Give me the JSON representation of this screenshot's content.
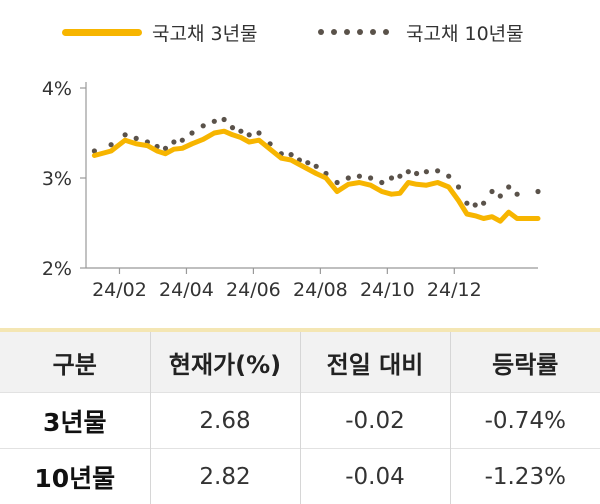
{
  "legend": {
    "series1": "국고채 3년물",
    "series2": "국고채 10년물"
  },
  "colors": {
    "series1": "#F7B500",
    "series2": "#5a524a",
    "axis": "#999999"
  },
  "chart_data": {
    "type": "line",
    "x_tick_labels": [
      "24/02",
      "24/04",
      "24/06",
      "24/08",
      "24/10",
      "24/12"
    ],
    "y_tick_labels": [
      "4%",
      "3%",
      "2%"
    ],
    "ylim": [
      2.0,
      4.0
    ],
    "xlabel": "",
    "ylabel": "",
    "grid": false,
    "legend_position": "top",
    "series": [
      {
        "name": "국고채 3년물",
        "style": "solid line",
        "x": [
          "24/01",
          "24/01",
          "24/02",
          "24/02",
          "24/02",
          "24/03",
          "24/03",
          "24/03",
          "24/03",
          "24/04",
          "24/04",
          "24/04",
          "24/05",
          "24/05",
          "24/05",
          "24/05",
          "24/06",
          "24/06",
          "24/06",
          "24/07",
          "24/07",
          "24/07",
          "24/07",
          "24/08",
          "24/08",
          "24/08",
          "24/09",
          "24/09",
          "24/09",
          "24/10",
          "24/10",
          "24/10",
          "24/10",
          "24/11",
          "24/11",
          "24/11",
          "24/12",
          "24/12",
          "24/12",
          "24/12",
          "25/01",
          "25/01",
          "25/01",
          "25/01",
          "25/02"
        ],
        "y": [
          3.25,
          3.3,
          3.42,
          3.38,
          3.36,
          3.3,
          3.27,
          3.32,
          3.33,
          3.38,
          3.43,
          3.5,
          3.52,
          3.48,
          3.45,
          3.4,
          3.42,
          3.32,
          3.22,
          3.2,
          3.15,
          3.1,
          3.05,
          3.0,
          2.85,
          2.93,
          2.95,
          2.92,
          2.85,
          2.82,
          2.83,
          2.95,
          2.93,
          2.92,
          2.95,
          2.9,
          2.75,
          2.6,
          2.58,
          2.55,
          2.57,
          2.52,
          2.62,
          2.55,
          2.55
        ]
      },
      {
        "name": "국고채 10년물",
        "style": "dotted",
        "x": [
          "24/01",
          "24/01",
          "24/02",
          "24/02",
          "24/02",
          "24/03",
          "24/03",
          "24/03",
          "24/03",
          "24/04",
          "24/04",
          "24/04",
          "24/05",
          "24/05",
          "24/05",
          "24/05",
          "24/06",
          "24/06",
          "24/06",
          "24/07",
          "24/07",
          "24/07",
          "24/07",
          "24/08",
          "24/08",
          "24/08",
          "24/09",
          "24/09",
          "24/09",
          "24/10",
          "24/10",
          "24/10",
          "24/10",
          "24/11",
          "24/11",
          "24/11",
          "24/12",
          "24/12",
          "24/12",
          "24/12",
          "25/01",
          "25/01",
          "25/01",
          "25/01",
          "25/02"
        ],
        "y": [
          3.3,
          3.37,
          3.48,
          3.44,
          3.4,
          3.35,
          3.33,
          3.4,
          3.42,
          3.5,
          3.58,
          3.63,
          3.65,
          3.56,
          3.52,
          3.48,
          3.5,
          3.38,
          3.27,
          3.26,
          3.2,
          3.17,
          3.13,
          3.05,
          2.95,
          3.0,
          3.02,
          3.0,
          2.95,
          3.0,
          3.02,
          3.07,
          3.05,
          3.07,
          3.08,
          3.02,
          2.9,
          2.72,
          2.7,
          2.72,
          2.85,
          2.8,
          2.9,
          2.82,
          2.85
        ]
      }
    ]
  },
  "table": {
    "headers": [
      "구분",
      "현재가(%)",
      "전일 대비",
      "등락률"
    ],
    "rows": [
      {
        "label": "3년물",
        "price": "2.68",
        "change": "-0.02",
        "rate": "-0.74%"
      },
      {
        "label": "10년물",
        "price": "2.82",
        "change": "-0.04",
        "rate": "-1.23%"
      }
    ]
  }
}
